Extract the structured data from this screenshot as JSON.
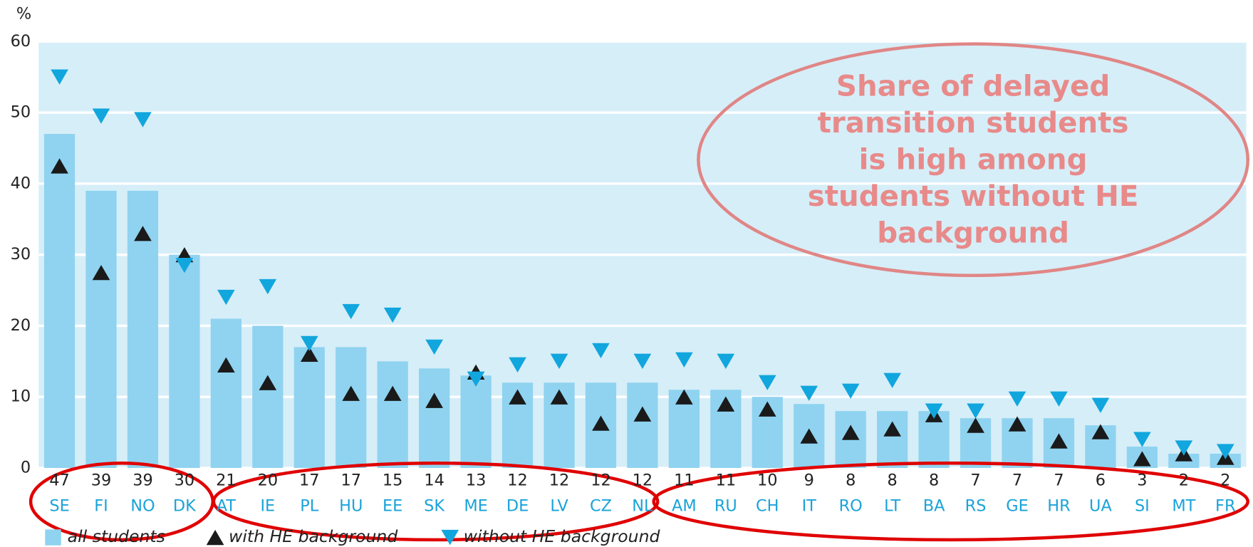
{
  "chart_data": {
    "type": "bar",
    "y_label": "%",
    "annotation": [
      "Share of delayed",
      "transition students",
      "is high among",
      "students without HE",
      "background"
    ],
    "categories": [
      "SE",
      "FI",
      "NO",
      "DK",
      "AT",
      "IE",
      "PL",
      "HU",
      "EE",
      "SK",
      "ME",
      "DE",
      "LV",
      "CZ",
      "NL",
      "AM",
      "RU",
      "CH",
      "IT",
      "RO",
      "LT",
      "BA",
      "RS",
      "GE",
      "HR",
      "UA",
      "SI",
      "MT",
      "FR"
    ],
    "series": [
      {
        "name": "all students",
        "color": "#8fd3f0",
        "marker": "bar",
        "values": [
          47,
          39,
          39,
          30,
          21,
          20,
          17,
          17,
          15,
          14,
          13,
          12,
          12,
          12,
          12,
          11,
          11,
          10,
          9,
          8,
          8,
          8,
          7,
          7,
          7,
          6,
          3,
          2,
          2
        ]
      },
      {
        "name": "with HE background",
        "color": "#1a1a1a",
        "marker": "triangle-up",
        "values": [
          42.5,
          27.5,
          33,
          30,
          14.5,
          12,
          16,
          10.5,
          10.5,
          9.5,
          13.5,
          10,
          10,
          6.3,
          7.6,
          10,
          9,
          8.3,
          4.5,
          5,
          5.5,
          7.5,
          6,
          6.2,
          3.8,
          5.1,
          1.3,
          2,
          1.5
        ]
      },
      {
        "name": "without HE background",
        "color": "#11a6dd",
        "marker": "triangle-down",
        "values": [
          55,
          49.5,
          49,
          28.5,
          24,
          25.5,
          17.5,
          22,
          21.5,
          17,
          12.5,
          14.5,
          15,
          16.5,
          15,
          15.2,
          15,
          12,
          10.5,
          10.8,
          12.3,
          8,
          8,
          9.7,
          9.7,
          8.8,
          4,
          2.8,
          2.3
        ]
      }
    ],
    "ylim": [
      0,
      60
    ],
    "yticks": [
      0,
      10,
      20,
      30,
      40,
      50,
      60
    ],
    "grid": true
  }
}
